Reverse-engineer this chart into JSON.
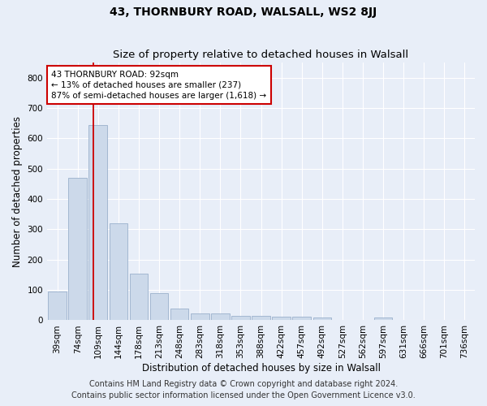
{
  "title": "43, THORNBURY ROAD, WALSALL, WS2 8JJ",
  "subtitle": "Size of property relative to detached houses in Walsall",
  "xlabel": "Distribution of detached houses by size in Walsall",
  "ylabel": "Number of detached properties",
  "bar_labels": [
    "39sqm",
    "74sqm",
    "109sqm",
    "144sqm",
    "178sqm",
    "213sqm",
    "248sqm",
    "283sqm",
    "318sqm",
    "353sqm",
    "388sqm",
    "422sqm",
    "457sqm",
    "492sqm",
    "527sqm",
    "562sqm",
    "597sqm",
    "631sqm",
    "666sqm",
    "701sqm",
    "736sqm"
  ],
  "bar_values": [
    95,
    470,
    645,
    320,
    155,
    90,
    40,
    23,
    23,
    15,
    15,
    13,
    13,
    8,
    0,
    0,
    8,
    0,
    0,
    0,
    0
  ],
  "bar_color": "#ccd9ea",
  "bar_edge_color": "#9ab0cb",
  "vline_x": 1.75,
  "annotation_text": "43 THORNBURY ROAD: 92sqm\n← 13% of detached houses are smaller (237)\n87% of semi-detached houses are larger (1,618) →",
  "annotation_box_color": "white",
  "annotation_box_edge_color": "#cc0000",
  "vline_color": "#cc0000",
  "ylim": [
    0,
    850
  ],
  "yticks": [
    0,
    100,
    200,
    300,
    400,
    500,
    600,
    700,
    800
  ],
  "footer_line1": "Contains HM Land Registry data © Crown copyright and database right 2024.",
  "footer_line2": "Contains public sector information licensed under the Open Government Licence v3.0.",
  "bg_color": "#e8eef8",
  "plot_bg_color": "#e8eef8",
  "grid_color": "white",
  "title_fontsize": 10,
  "subtitle_fontsize": 9.5,
  "axis_label_fontsize": 8.5,
  "tick_fontsize": 7.5,
  "annotation_fontsize": 7.5,
  "footer_fontsize": 7
}
